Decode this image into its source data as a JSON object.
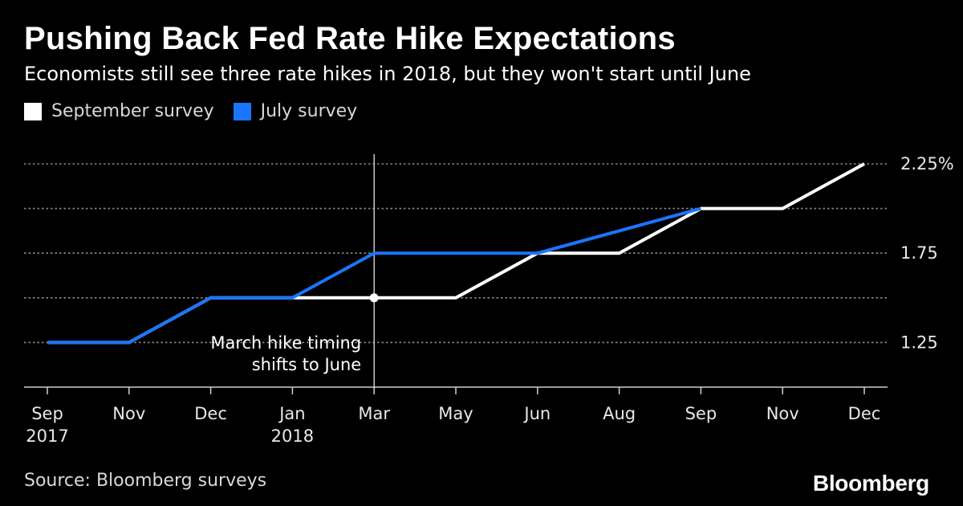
{
  "header": {
    "title": "Pushing Back Fed Rate Hike Expectations",
    "subtitle": "Economists still see three rate hikes in 2018, but they won't start until June"
  },
  "footer": {
    "source": "Source: Bloomberg surveys",
    "brand": "Bloomberg"
  },
  "colors": {
    "background": "#000000",
    "september": "#ffffff",
    "july": "#1a75ff",
    "grid": "#8a8a8a"
  },
  "chart_data": {
    "type": "line",
    "title": "Pushing Back Fed Rate Hike Expectations",
    "subtitle": "Economists still see three rate hikes in 2018, but they won't start until June",
    "categories": [
      "Sep",
      "Nov",
      "Dec",
      "Jan",
      "Mar",
      "May",
      "Jun",
      "Aug",
      "Sep",
      "Nov",
      "Dec"
    ],
    "category_years": [
      "2017",
      "",
      "",
      "2018",
      "",
      "",
      "",
      "",
      "",
      "",
      ""
    ],
    "ylim": [
      1.0,
      2.25
    ],
    "yticks": [
      1.25,
      1.5,
      1.75,
      2.0,
      2.25
    ],
    "ytick_labels": [
      "1.25",
      "",
      "1.75",
      "",
      "2.25%"
    ],
    "grid": true,
    "legend_position": "top-left",
    "series": [
      {
        "name": "September survey",
        "color": "#ffffff",
        "values": [
          1.25,
          1.25,
          1.5,
          1.5,
          1.5,
          1.5,
          1.75,
          1.75,
          2.0,
          2.0,
          2.25
        ]
      },
      {
        "name": "July survey",
        "color": "#1a75ff",
        "values": [
          1.25,
          1.25,
          1.5,
          1.5,
          1.75,
          1.75,
          1.75,
          1.875,
          2.0,
          null,
          null
        ]
      }
    ],
    "annotation": {
      "line1": "March hike timing",
      "line2": "shifts to June",
      "category_index": 4,
      "value": 1.5
    }
  }
}
